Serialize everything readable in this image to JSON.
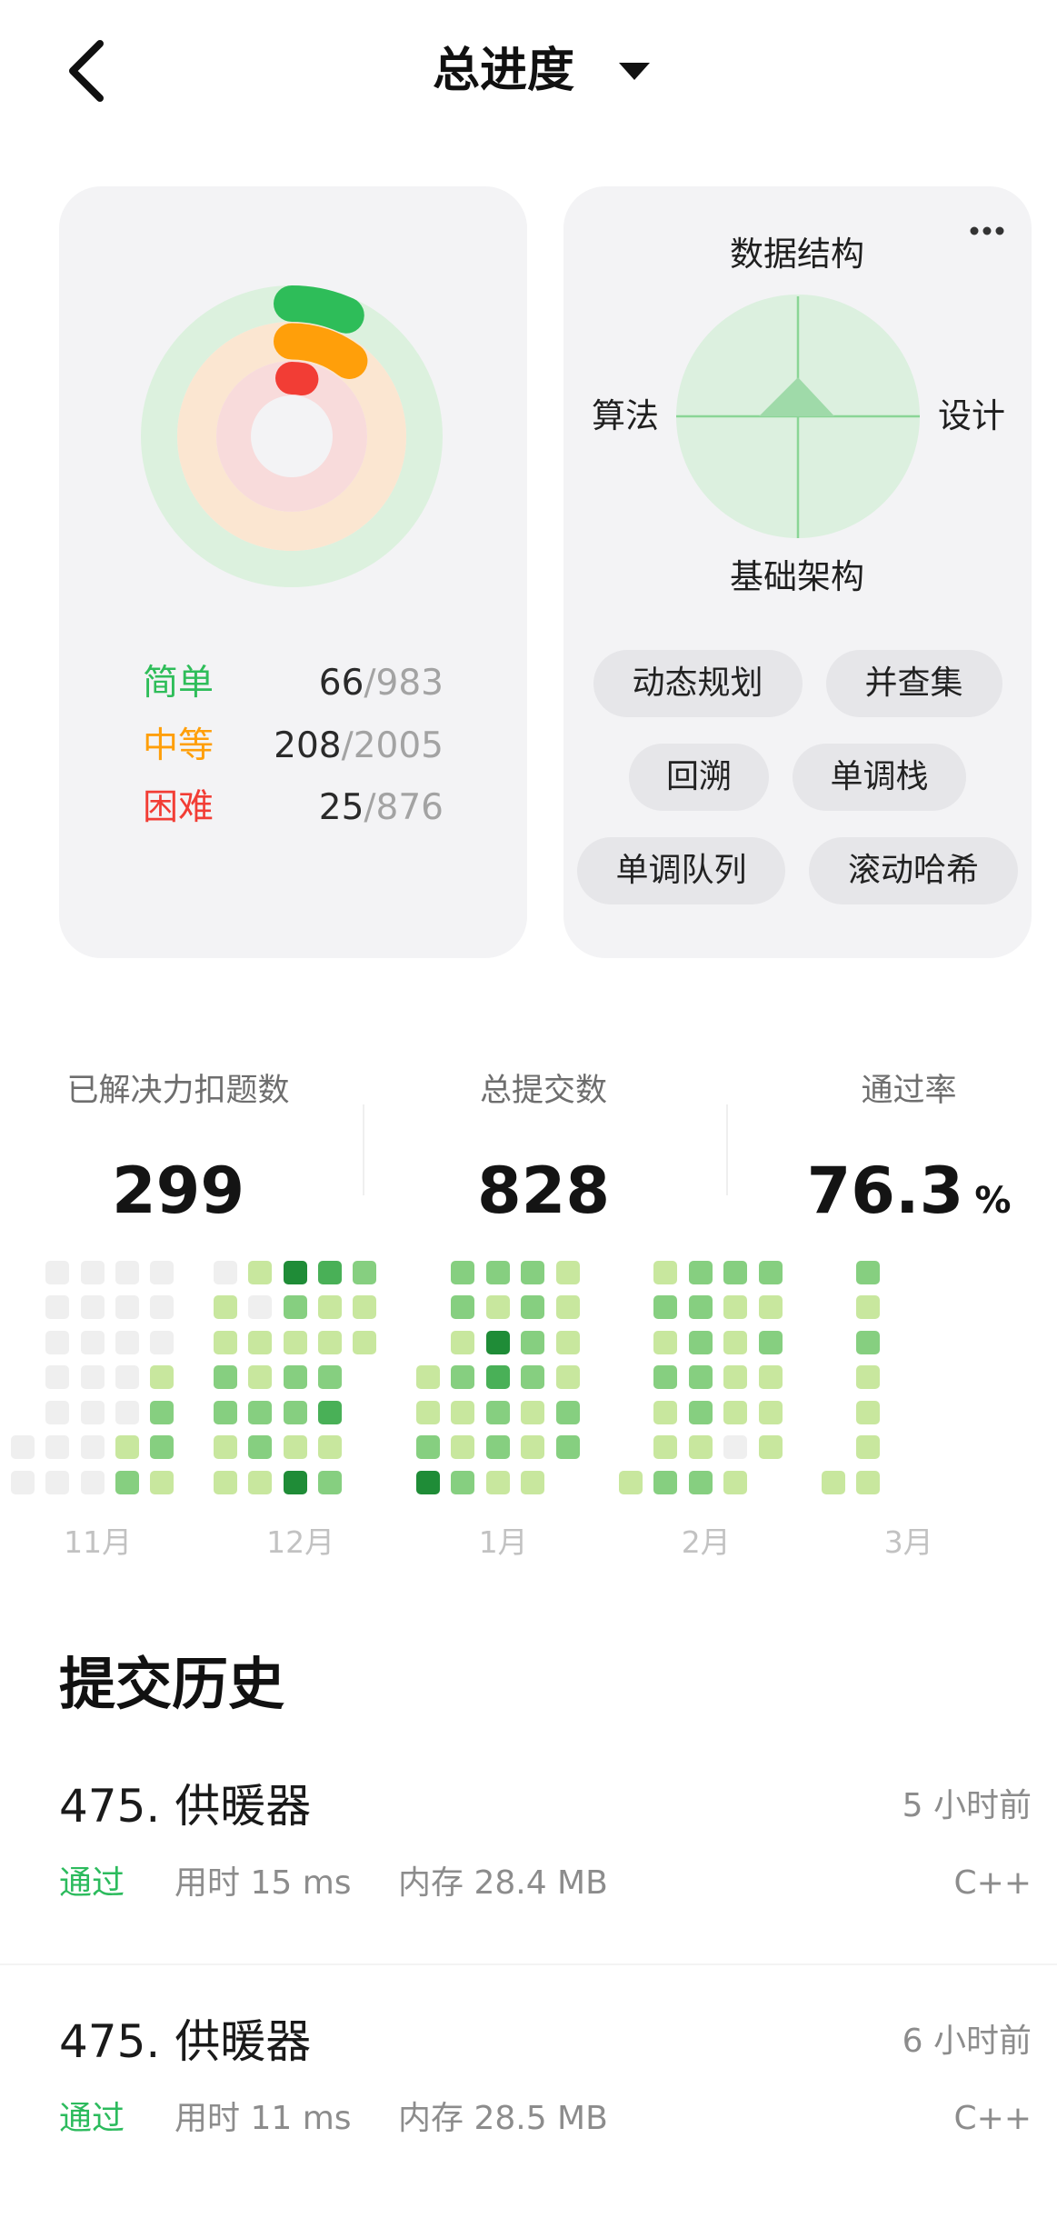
{
  "header": {
    "back_icon": "chevron-left-icon",
    "title": "总进度",
    "dropdown_icon": "caret-down-icon"
  },
  "difficulty_progress": {
    "separator": "/",
    "items": [
      {
        "label": "简单",
        "solved": 66,
        "total": 983,
        "color": "#2ebd59",
        "track_color": "#dcf1de"
      },
      {
        "label": "中等",
        "solved": 208,
        "total": 2005,
        "color": "#ff9f0a",
        "track_color": "#fbe6d1"
      },
      {
        "label": "困难",
        "solved": 25,
        "total": 876,
        "color": "#f23d35",
        "track_color": "#f8dbdb"
      }
    ]
  },
  "skills": {
    "more_icon": "more-horizontal-icon",
    "radar": {
      "background_color": "#dcf0df",
      "grid_color": "#8ad596",
      "area_color": "#9fdaa9",
      "axes": [
        {
          "label": "数据结构",
          "value": 0.32
        },
        {
          "label": "设计",
          "value": 0.3
        },
        {
          "label": "基础架构",
          "value": 0
        },
        {
          "label": "算法",
          "value": 0.32
        }
      ]
    },
    "tags": [
      "动态规划",
      "并查集",
      "回溯",
      "单调栈",
      "单调队列",
      "滚动哈希"
    ]
  },
  "stats": {
    "solved_label": "已解决力扣题数",
    "solved": "299",
    "submissions_label": "总提交数",
    "submissions": "828",
    "acceptance_label": "通过率",
    "acceptance": "76.3",
    "acceptance_unit": "%"
  },
  "calendar": {
    "level_colors": [
      "#efefef",
      "#c8e79e",
      "#86cf80",
      "#49b057",
      "#1f8c37"
    ],
    "months": [
      {
        "label": "11月",
        "weeks": [
          [
            null,
            null,
            null,
            null,
            null,
            0,
            0
          ],
          [
            0,
            0,
            0,
            0,
            0,
            0,
            0
          ],
          [
            0,
            0,
            0,
            0,
            0,
            0,
            0
          ],
          [
            0,
            0,
            0,
            0,
            0,
            1,
            2
          ],
          [
            0,
            0,
            0,
            1,
            2,
            2,
            1
          ]
        ]
      },
      {
        "label": "12月",
        "weeks": [
          [
            0,
            1,
            1,
            2,
            2,
            1,
            1
          ],
          [
            1,
            0,
            1,
            1,
            2,
            2,
            1
          ],
          [
            4,
            2,
            1,
            2,
            2,
            1,
            4
          ],
          [
            3,
            1,
            1,
            2,
            3,
            1,
            2
          ],
          [
            2,
            1,
            1,
            null,
            null,
            null,
            null
          ]
        ]
      },
      {
        "label": "1月",
        "weeks": [
          [
            null,
            null,
            null,
            1,
            1,
            2,
            4
          ],
          [
            2,
            2,
            1,
            2,
            1,
            1,
            2
          ],
          [
            2,
            1,
            4,
            3,
            2,
            2,
            1
          ],
          [
            2,
            2,
            2,
            2,
            1,
            1,
            1
          ],
          [
            1,
            1,
            1,
            1,
            2,
            2,
            null
          ]
        ]
      },
      {
        "label": "2月",
        "weeks": [
          [
            null,
            null,
            null,
            null,
            null,
            null,
            1
          ],
          [
            1,
            2,
            1,
            2,
            1,
            1,
            2
          ],
          [
            2,
            2,
            2,
            2,
            2,
            1,
            2
          ],
          [
            2,
            1,
            1,
            1,
            1,
            0,
            1
          ],
          [
            2,
            1,
            2,
            1,
            1,
            1,
            null
          ]
        ]
      },
      {
        "label": "3月",
        "weeks": [
          [
            null,
            null,
            null,
            null,
            null,
            null,
            1
          ],
          [
            2,
            1,
            2,
            1,
            1,
            1,
            1
          ]
        ]
      }
    ]
  },
  "history": {
    "title": "提交历史",
    "status_color": "#2cbb5d",
    "items": [
      {
        "title": "475. 供暖器",
        "time": "5 小时前",
        "status": "通过",
        "runtime": "用时 15 ms",
        "memory": "内存 28.4 MB",
        "language": "C++"
      },
      {
        "title": "475. 供暖器",
        "time": "6 小时前",
        "status": "通过",
        "runtime": "用时 11 ms",
        "memory": "内存 28.5 MB",
        "language": "C++"
      }
    ]
  }
}
